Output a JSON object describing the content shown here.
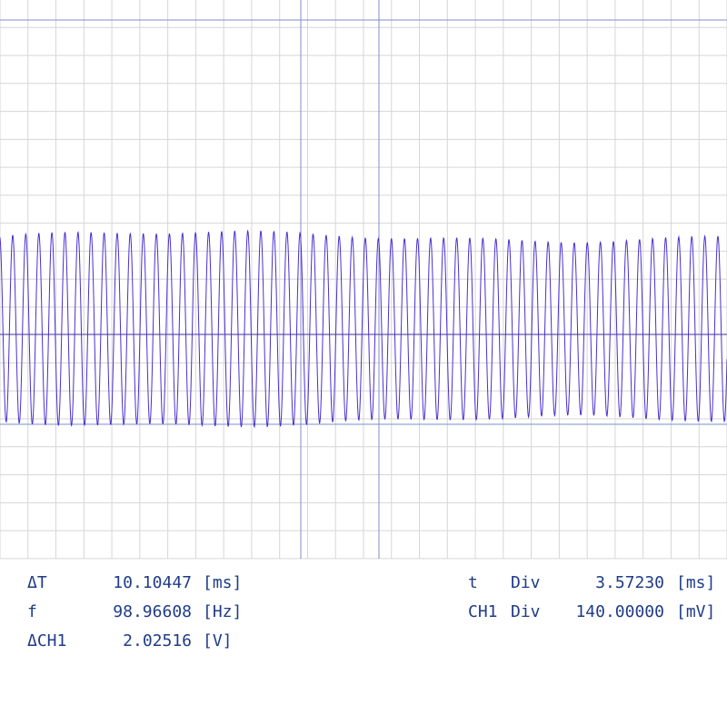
{
  "readouts": [
    {
      "label": "ΔT",
      "value": "10.10447",
      "unit": "[ms]"
    },
    {
      "label": "f",
      "value": "98.96608",
      "unit": "[Hz]"
    },
    {
      "label": "ΔCH1",
      "value": "2.02516",
      "unit": "[V]"
    }
  ],
  "settings": [
    {
      "channel": "t",
      "label": "Div",
      "value": "3.57230",
      "unit": "[ms]"
    },
    {
      "channel": "CH1",
      "label": "Div",
      "value": "140.00000",
      "unit": "[mV]"
    }
  ]
}
